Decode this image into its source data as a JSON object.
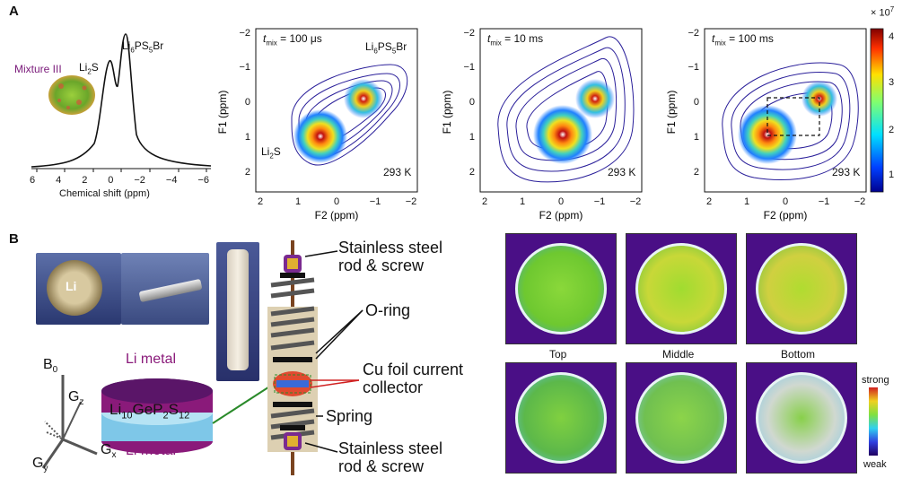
{
  "panelA": {
    "letter": "A",
    "spectrum": {
      "mixture_label": "Mixture III",
      "peak1": "Li2S",
      "peak2": "Li6PS5Br",
      "xlabel": "Chemical shift (ppm)",
      "ticks": [
        "6",
        "4",
        "2",
        "0",
        "−2",
        "−4",
        "−6"
      ]
    },
    "plots": [
      {
        "tmix": "t",
        "tmix_sub": "mix",
        "tmix_val": "= 100 μs",
        "temp": "293 K",
        "peak_top": "Li6PS5Br",
        "peak_bottom": "Li2S"
      },
      {
        "tmix": "t",
        "tmix_sub": "mix",
        "tmix_val": "= 10 ms",
        "temp": "293 K"
      },
      {
        "tmix": "t",
        "tmix_sub": "mix",
        "tmix_val": "= 100 ms",
        "temp": "293 K"
      }
    ],
    "f1_label": "F1 (ppm)",
    "f2_label": "F2 (ppm)",
    "f1_ticks": [
      "−2",
      "−1",
      "0",
      "1",
      "2"
    ],
    "f2_ticks": [
      "2",
      "1",
      "0",
      "−1",
      "−2"
    ],
    "colorbar": {
      "exponent": "× 10",
      "power": "7",
      "ticks": [
        "4",
        "3",
        "2",
        "1"
      ]
    }
  },
  "panelB": {
    "letter": "B",
    "li_coin": "Li",
    "li_metal_top": "Li metal",
    "li_metal_bottom": "Li metal",
    "electrolyte": "Li10GeP2S12",
    "axes": {
      "b0": "B",
      "b0_sub": "0",
      "gz": "G",
      "gz_sub": "z",
      "gx": "G",
      "gx_sub": "x",
      "gy": "G",
      "gy_sub": "y"
    },
    "callouts": {
      "rod_top": [
        "Stainless steel",
        "rod & screw"
      ],
      "oring": "O-ring",
      "cu_foil": [
        "Cu foil current",
        "collector"
      ],
      "spring": "Spring",
      "rod_bottom": [
        "Stainless steel",
        "rod & screw"
      ]
    },
    "mri_labels": [
      "Top",
      "Middle",
      "Bottom"
    ],
    "scale": {
      "strong": "strong",
      "weak": "weak"
    }
  },
  "colors": {
    "jet_red": "#b01010",
    "navy": "#1a1a80",
    "purple": "#4a0f86",
    "green_disc": "#7dd23a"
  }
}
